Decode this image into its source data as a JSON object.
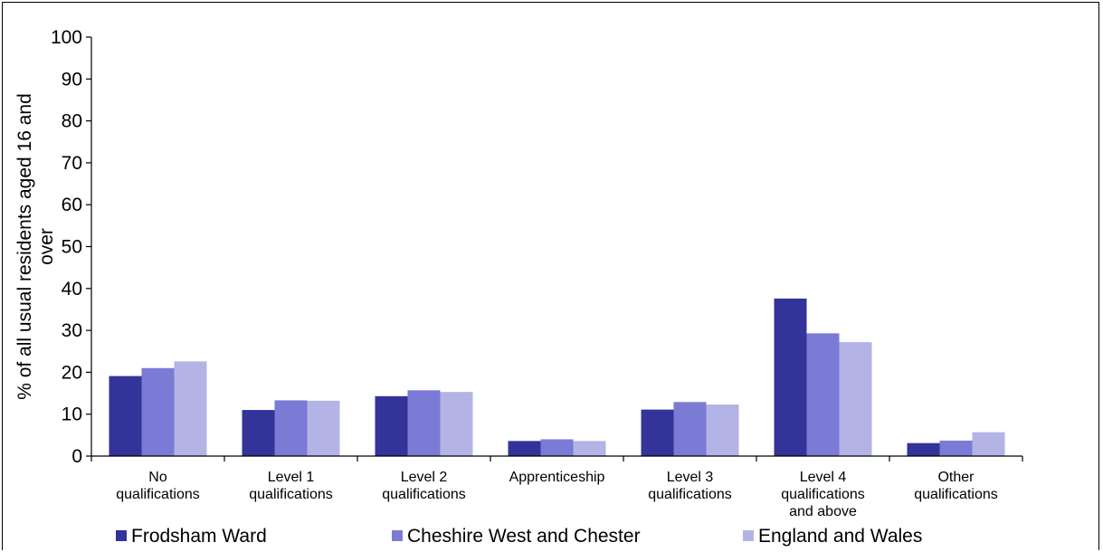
{
  "chart_data": {
    "type": "bar",
    "title": "",
    "ylabel": [
      "% of all usual residents aged 16 and",
      "over"
    ],
    "xlabel": "",
    "ylim": [
      0,
      100
    ],
    "yticks": [
      0,
      10,
      20,
      30,
      40,
      50,
      60,
      70,
      80,
      90,
      100
    ],
    "categories": [
      [
        "No",
        "qualifications"
      ],
      [
        "Level 1",
        "qualifications"
      ],
      [
        "Level 2",
        "qualifications"
      ],
      [
        "Apprenticeship"
      ],
      [
        "Level 3",
        "qualifications"
      ],
      [
        "Level 4",
        "qualifications",
        "and above"
      ],
      [
        "Other",
        "qualifications"
      ]
    ],
    "series": [
      {
        "name": "Frodsham Ward",
        "color": "#333399",
        "values": [
          19.1,
          11.0,
          14.3,
          3.6,
          11.1,
          37.6,
          3.1
        ]
      },
      {
        "name": "Cheshire West and Chester",
        "color": "#7b7bd6",
        "values": [
          21.0,
          13.3,
          15.7,
          4.0,
          12.9,
          29.3,
          3.7
        ]
      },
      {
        "name": "England and Wales",
        "color": "#b3b3e6",
        "values": [
          22.6,
          13.2,
          15.3,
          3.6,
          12.3,
          27.2,
          5.7
        ]
      }
    ],
    "grid": false,
    "legend_position": "bottom"
  }
}
